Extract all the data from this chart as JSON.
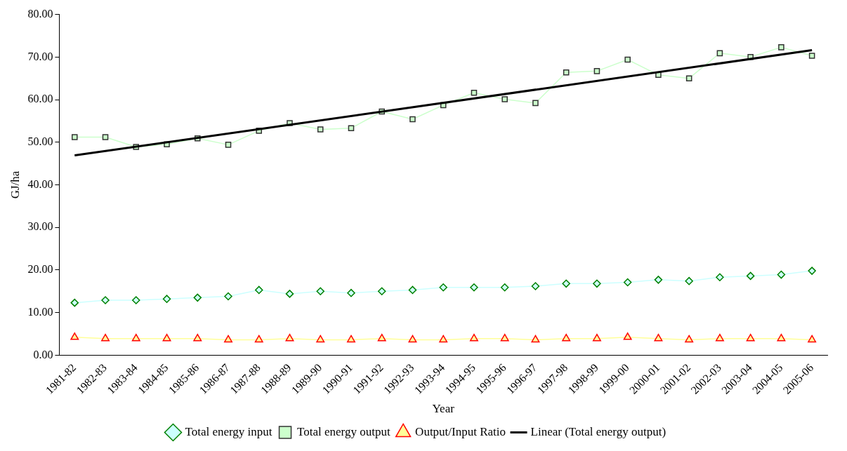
{
  "chart_data": {
    "type": "line",
    "xlabel": "Year",
    "ylabel": "GJ/ha",
    "categories": [
      "1981-82",
      "1982-83",
      "1983-84",
      "1984-85",
      "1985-86",
      "1986-87",
      "1987-88",
      "1988-89",
      "1989-90",
      "1990-91",
      "1991-92",
      "1992-93",
      "1993-94",
      "1994-95",
      "1995-96",
      "1996-97",
      "1997-98",
      "1998-99",
      "1999-00",
      "2000-01",
      "2001-02",
      "2002-03",
      "2003-04",
      "2004-05",
      "2005-06"
    ],
    "ylim": [
      0,
      80
    ],
    "yticks": [
      {
        "value": 0,
        "label": "0.00"
      },
      {
        "value": 10,
        "label": "10.00"
      },
      {
        "value": 20,
        "label": "20.00"
      },
      {
        "value": 30,
        "label": "30.00"
      },
      {
        "value": 40,
        "label": "40.00"
      },
      {
        "value": 50,
        "label": "50.00"
      },
      {
        "value": 60,
        "label": "60.00"
      },
      {
        "value": 70,
        "label": "70.00"
      },
      {
        "value": 80,
        "label": "80.00"
      }
    ],
    "grid": false,
    "legend": "bottom",
    "series": [
      {
        "name": "Total energy input",
        "color": "#ccffff",
        "marker": "diamond",
        "values": [
          12.3,
          12.9,
          12.9,
          13.2,
          13.5,
          13.8,
          15.3,
          14.4,
          15.0,
          14.6,
          15.0,
          15.3,
          15.9,
          15.9,
          15.9,
          16.2,
          16.8,
          16.8,
          17.1,
          17.7,
          17.4,
          18.3,
          18.6,
          18.9,
          19.8
        ]
      },
      {
        "name": "Total energy output",
        "color": "#ccffcc",
        "marker": "square",
        "values": [
          51.2,
          51.2,
          48.9,
          49.5,
          50.9,
          49.4,
          52.7,
          54.5,
          53.0,
          53.3,
          57.2,
          55.4,
          58.7,
          61.6,
          60.1,
          59.2,
          66.4,
          66.7,
          69.4,
          65.8,
          65.0,
          70.9,
          70.0,
          72.3,
          70.3
        ]
      },
      {
        "name": "Output/Input Ratio",
        "color": "#ffff99",
        "marker": "triangle",
        "values": [
          4.2,
          3.9,
          3.9,
          3.9,
          3.9,
          3.6,
          3.6,
          3.9,
          3.6,
          3.6,
          3.9,
          3.6,
          3.6,
          3.9,
          3.9,
          3.6,
          3.9,
          3.9,
          4.2,
          3.9,
          3.6,
          3.9,
          3.9,
          3.9,
          3.6
        ]
      },
      {
        "name": "Linear (Total energy output)",
        "type": "line",
        "color": "#000000",
        "marker": "none",
        "values": [
          46.9,
          null,
          null,
          null,
          null,
          null,
          null,
          null,
          null,
          null,
          null,
          null,
          null,
          null,
          null,
          null,
          null,
          null,
          null,
          null,
          null,
          null,
          null,
          null,
          71.6
        ]
      }
    ]
  }
}
